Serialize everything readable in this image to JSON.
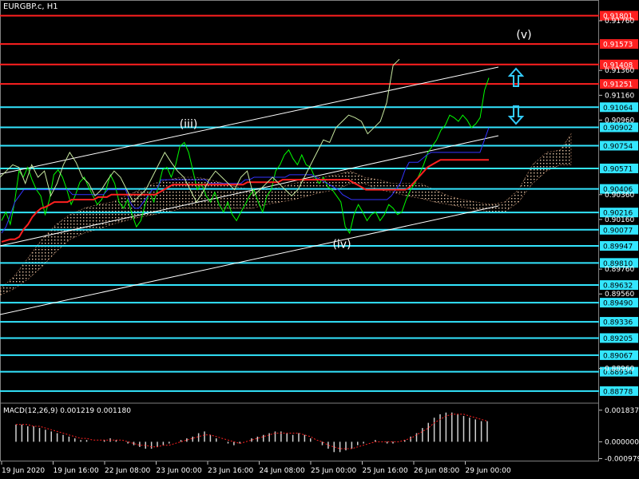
{
  "header": {
    "symbol": "EURGBP.c, H1"
  },
  "macd": {
    "label": "MACD(12,26,9) 0.001219 0.001180"
  },
  "chart_data": {
    "type": "line",
    "ylim": [
      0.887,
      0.9185
    ],
    "y_ticks": [
      "0.91760",
      "0.91360",
      "0.91160",
      "0.90960",
      "0.90360",
      "0.90160",
      "0.89760",
      "0.89560",
      "0.88960"
    ],
    "red_levels": [
      {
        "value": 0.91801,
        "label": "0.91801"
      },
      {
        "value": 0.91573,
        "label": "0.91573"
      },
      {
        "value": 0.91408,
        "label": "0.91408"
      },
      {
        "value": 0.91251,
        "label": "0.91251"
      }
    ],
    "cyan_levels": [
      {
        "value": 0.91064,
        "label": "0.91064"
      },
      {
        "value": 0.90902,
        "label": "0.90902"
      },
      {
        "value": 0.90754,
        "label": "0.90754"
      },
      {
        "value": 0.90571,
        "label": "0.90571"
      },
      {
        "value": 0.90406,
        "label": "0.90406"
      },
      {
        "value": 0.90216,
        "label": "0.90216"
      },
      {
        "value": 0.90077,
        "label": "0.90077"
      },
      {
        "value": 0.89947,
        "label": "0.89947"
      },
      {
        "value": 0.8981,
        "label": "0.89810"
      },
      {
        "value": 0.89632,
        "label": "0.89632"
      },
      {
        "value": 0.8949,
        "label": "0.89490"
      },
      {
        "value": 0.89336,
        "label": "0.89336"
      },
      {
        "value": 0.89205,
        "label": "0.89205"
      },
      {
        "value": 0.89067,
        "label": "0.89067"
      },
      {
        "value": 0.88934,
        "label": "0.88934"
      },
      {
        "value": 0.88778,
        "label": "0.88778"
      }
    ],
    "x_labels": [
      "19 Jun 2020",
      "19 Jun 16:00",
      "22 Jun 08:00",
      "23 Jun 00:00",
      "23 Jun 16:00",
      "24 Jun 08:00",
      "25 Jun 00:00",
      "25 Jun 16:00",
      "26 Jun 08:00",
      "29 Jun 00:00"
    ],
    "wave_labels": [
      {
        "text": "(iii)",
        "x_index": 236,
        "value": 0.909
      },
      {
        "text": "(iv)",
        "x_index": 428,
        "value": 0.8993
      },
      {
        "text": "(v)",
        "x_index": 656,
        "value": 0.9162
      }
    ],
    "series": [
      {
        "name": "price",
        "color": "#00ff00",
        "values": [
          0.9015,
          0.9022,
          0.9012,
          0.903,
          0.9055,
          0.905,
          0.9058,
          0.9048,
          0.904,
          0.9035,
          0.902,
          0.9032,
          0.9052,
          0.9056,
          0.905,
          0.904,
          0.9028,
          0.9036,
          0.9046,
          0.905,
          0.9042,
          0.9035,
          0.9028,
          0.9032,
          0.904,
          0.9052,
          0.9045,
          0.903,
          0.9025,
          0.9032,
          0.902,
          0.901,
          0.9015,
          0.9028,
          0.9038,
          0.903,
          0.9042,
          0.9056,
          0.9058,
          0.905,
          0.906,
          0.9075,
          0.9078,
          0.907,
          0.9055,
          0.904,
          0.9045,
          0.9035,
          0.903,
          0.9038,
          0.9028,
          0.9022,
          0.903,
          0.902,
          0.9015,
          0.9022,
          0.9028,
          0.9035,
          0.904,
          0.903,
          0.9022,
          0.9035,
          0.904,
          0.9055,
          0.906,
          0.9068,
          0.9072,
          0.9065,
          0.906,
          0.9068,
          0.906,
          0.9058,
          0.905,
          0.9045,
          0.905,
          0.9042,
          0.904,
          0.9035,
          0.903,
          0.901,
          0.9005,
          0.902,
          0.9028,
          0.9022,
          0.9015,
          0.902,
          0.9022,
          0.9015,
          0.902,
          0.9028,
          0.9025,
          0.902,
          0.9022,
          0.9032,
          0.904,
          0.9045,
          0.9052,
          0.906,
          0.907,
          0.9075,
          0.908,
          0.9088,
          0.9092,
          0.91,
          0.9098,
          0.9095,
          0.91,
          0.9096,
          0.909,
          0.9093,
          0.9098,
          0.912,
          0.913
        ]
      },
      {
        "name": "tenkan",
        "color": "#3333ff",
        "values": [
          0.9005,
          0.901,
          0.902,
          0.903,
          0.9035,
          0.904,
          0.904,
          0.904,
          0.904,
          0.904,
          0.904,
          0.904,
          0.904,
          0.904,
          0.904,
          0.904,
          0.9036,
          0.9036,
          0.9036,
          0.9036,
          0.9036,
          0.9036,
          0.9036,
          0.9036,
          0.904,
          0.904,
          0.904,
          0.904,
          0.904,
          0.903,
          0.9025,
          0.9025,
          0.903,
          0.9035,
          0.904,
          0.904,
          0.9048,
          0.9048,
          0.9048,
          0.9048,
          0.9048,
          0.9048,
          0.9048,
          0.9048,
          0.9048,
          0.9048,
          0.9048,
          0.9045,
          0.9045,
          0.9045,
          0.9045,
          0.9045,
          0.9045,
          0.9045,
          0.9045,
          0.9048,
          0.9048,
          0.905,
          0.905,
          0.905,
          0.905,
          0.905,
          0.905,
          0.905,
          0.905,
          0.9052,
          0.9052,
          0.9052,
          0.9052,
          0.9052,
          0.9052,
          0.905,
          0.9048,
          0.9046,
          0.9044,
          0.9042,
          0.904,
          0.9036,
          0.9034,
          0.9032,
          0.9032,
          0.9032,
          0.9032,
          0.9032,
          0.9032,
          0.9032,
          0.9032,
          0.9032,
          0.9035,
          0.904,
          0.9045,
          0.9055,
          0.9062,
          0.9062,
          0.9062,
          0.9065,
          0.9068,
          0.907,
          0.907,
          0.907,
          0.907,
          0.907,
          0.907,
          0.907,
          0.907,
          0.907,
          0.907,
          0.907,
          0.907,
          0.908,
          0.909
        ]
      },
      {
        "name": "kijun",
        "color": "#ff2020",
        "values": [
          0.8998,
          0.8999,
          0.9,
          0.9,
          0.9002,
          0.9008,
          0.9012,
          0.9018,
          0.9022,
          0.9025,
          0.9026,
          0.9028,
          0.903,
          0.903,
          0.903,
          0.903,
          0.9032,
          0.9032,
          0.9032,
          0.9032,
          0.9032,
          0.9032,
          0.9034,
          0.9034,
          0.9034,
          0.9036,
          0.9036,
          0.9036,
          0.9036,
          0.9036,
          0.9036,
          0.9036,
          0.9036,
          0.9036,
          0.9036,
          0.9036,
          0.9038,
          0.904,
          0.9042,
          0.9044,
          0.9044,
          0.9044,
          0.9044,
          0.9044,
          0.9044,
          0.9044,
          0.9044,
          0.9044,
          0.9044,
          0.9044,
          0.9044,
          0.9044,
          0.9044,
          0.9044,
          0.9044,
          0.9044,
          0.9046,
          0.9046,
          0.9046,
          0.9046,
          0.9046,
          0.9046,
          0.9046,
          0.9046,
          0.9048,
          0.9048,
          0.9048,
          0.9048,
          0.9048,
          0.9048,
          0.9048,
          0.9048,
          0.9048,
          0.9048,
          0.9048,
          0.9048,
          0.9048,
          0.9048,
          0.9048,
          0.9048,
          0.9046,
          0.9044,
          0.9042,
          0.904,
          0.904,
          0.904,
          0.904,
          0.904,
          0.904,
          0.904,
          0.904,
          0.904,
          0.904,
          0.9042,
          0.9046,
          0.905,
          0.9054,
          0.9058,
          0.906,
          0.9062,
          0.9064,
          0.9064,
          0.9064,
          0.9064,
          0.9064,
          0.9064,
          0.9064,
          0.9064,
          0.9064,
          0.9064,
          0.9064,
          0.9064
        ]
      },
      {
        "name": "chikou",
        "color": "#c8e8a0",
        "values": [
          0.905,
          0.9055,
          0.906,
          0.9058,
          0.9045,
          0.906,
          0.905,
          0.9055,
          0.9035,
          0.9045,
          0.906,
          0.907,
          0.9062,
          0.905,
          0.9045,
          0.9035,
          0.904,
          0.9048,
          0.9055,
          0.905,
          0.904,
          0.903,
          0.9035,
          0.904,
          0.905,
          0.906,
          0.907,
          0.9062,
          0.9055,
          0.905,
          0.904,
          0.903,
          0.9038,
          0.9048,
          0.9055,
          0.905,
          0.9045,
          0.904,
          0.905,
          0.9055,
          0.9035,
          0.904,
          0.9045,
          0.905,
          0.9045,
          0.904,
          0.9035,
          0.904,
          0.905,
          0.906,
          0.907,
          0.908,
          0.9078,
          0.909,
          0.9095,
          0.91,
          0.9098,
          0.9095,
          0.9085,
          0.909,
          0.9095,
          0.911,
          0.914,
          0.9145
        ]
      }
    ],
    "cloud": [
      {
        "x": 0.905,
        "a": 0.896,
        "b": 0.8955
      },
      {
        "x": 0.925,
        "a": 0.897,
        "b": 0.896
      },
      {
        "x": 0.945,
        "a": 0.8985,
        "b": 0.8968
      },
      {
        "x": 0.965,
        "a": 0.9,
        "b": 0.8978
      },
      {
        "x": 0.985,
        "a": 0.9012,
        "b": 0.899
      },
      {
        "x": 1.005,
        "a": 0.902,
        "b": 0.9
      },
      {
        "x": 1.025,
        "a": 0.9025,
        "b": 0.9005
      },
      {
        "x": 1.045,
        "a": 0.9028,
        "b": 0.9008
      },
      {
        "x": 1.065,
        "a": 0.903,
        "b": 0.9012
      },
      {
        "x": 1.085,
        "a": 0.9035,
        "b": 0.9015
      },
      {
        "x": 1.105,
        "a": 0.904,
        "b": 0.9018
      },
      {
        "x": 1.125,
        "a": 0.9045,
        "b": 0.902
      },
      {
        "x": 1.145,
        "a": 0.9048,
        "b": 0.9022
      },
      {
        "x": 1.165,
        "a": 0.905,
        "b": 0.9025
      },
      {
        "x": 1.185,
        "a": 0.905,
        "b": 0.9025
      },
      {
        "x": 1.205,
        "a": 0.9048,
        "b": 0.9025
      },
      {
        "x": 1.225,
        "a": 0.9045,
        "b": 0.9025
      },
      {
        "x": 1.245,
        "a": 0.9042,
        "b": 0.9025
      },
      {
        "x": 1.265,
        "a": 0.904,
        "b": 0.9025
      },
      {
        "x": 1.285,
        "a": 0.904,
        "b": 0.9028
      },
      {
        "x": 1.305,
        "a": 0.9042,
        "b": 0.903
      },
      {
        "x": 1.325,
        "a": 0.9045,
        "b": 0.9032
      },
      {
        "x": 1.345,
        "a": 0.9048,
        "b": 0.9035
      },
      {
        "x": 1.365,
        "a": 0.905,
        "b": 0.9038
      },
      {
        "x": 1.385,
        "a": 0.9052,
        "b": 0.904
      },
      {
        "x": 1.405,
        "a": 0.9055,
        "b": 0.9045
      },
      {
        "x": 1.425,
        "a": 0.905,
        "b": 0.9045
      },
      {
        "x": 1.445,
        "a": 0.9048,
        "b": 0.904
      },
      {
        "x": 1.465,
        "a": 0.9045,
        "b": 0.9038
      },
      {
        "x": 1.485,
        "a": 0.9045,
        "b": 0.9035
      },
      {
        "x": 1.505,
        "a": 0.9045,
        "b": 0.9033
      },
      {
        "x": 1.525,
        "a": 0.904,
        "b": 0.903
      },
      {
        "x": 1.545,
        "a": 0.9035,
        "b": 0.9028
      },
      {
        "x": 1.565,
        "a": 0.9032,
        "b": 0.9026
      },
      {
        "x": 1.585,
        "a": 0.903,
        "b": 0.9024
      },
      {
        "x": 1.605,
        "a": 0.9028,
        "b": 0.9022
      },
      {
        "x": 1.625,
        "a": 0.903,
        "b": 0.9022
      },
      {
        "x": 1.645,
        "a": 0.904,
        "b": 0.903
      },
      {
        "x": 1.665,
        "a": 0.906,
        "b": 0.9045
      },
      {
        "x": 1.685,
        "a": 0.907,
        "b": 0.9055
      },
      {
        "x": 1.705,
        "a": 0.9072,
        "b": 0.906
      },
      {
        "x": 1.72,
        "a": 0.9085,
        "b": 0.906
      }
    ],
    "macd_panel": {
      "ylim": [
        -0.00105,
        0.00192
      ],
      "y_ticks": [
        "0.001837",
        "0.000000",
        "-0.000979"
      ],
      "histogram": [
        0.001,
        0.001,
        0.0009,
        0.0009,
        0.0008,
        0.0007,
        0.0006,
        0.0005,
        0.0004,
        0.0003,
        0.0002,
        0.0001,
        0.0001,
        0.0,
        0.0,
        0.0001,
        0.0002,
        0.0001,
        0.0,
        -0.0001,
        -0.0002,
        -0.0003,
        -0.0004,
        -0.0004,
        -0.0003,
        -0.0002,
        -0.0001,
        0.0,
        0.0001,
        0.0002,
        0.0003,
        0.0005,
        0.0006,
        0.0004,
        0.0002,
        0.0,
        -0.0001,
        -0.0002,
        -0.0001,
        0.0,
        0.0002,
        0.0003,
        0.0004,
        0.0005,
        0.0006,
        0.0006,
        0.0005,
        0.0004,
        0.0005,
        0.0004,
        0.0002,
        0.0,
        -0.0002,
        -0.0004,
        -0.0006,
        -0.0006,
        -0.0005,
        -0.0004,
        -0.0002,
        -0.0001,
        0.0,
        0.0001,
        0.0,
        -0.0001,
        -0.0001,
        0.0,
        0.0001,
        0.0003,
        0.0005,
        0.0008,
        0.0011,
        0.0014,
        0.0016,
        0.0017,
        0.0017,
        0.0016,
        0.0015,
        0.0014,
        0.0013,
        0.0012,
        0.0012
      ],
      "signal": [
        0.001,
        0.001,
        0.001,
        0.0009,
        0.0009,
        0.0008,
        0.0007,
        0.0006,
        0.0005,
        0.0004,
        0.0003,
        0.0002,
        0.0002,
        0.0001,
        0.0001,
        0.0001,
        0.0001,
        0.0001,
        0.0001,
        0.0,
        -0.0001,
        -0.0002,
        -0.0002,
        -0.0003,
        -0.0003,
        -0.0002,
        -0.0002,
        -0.0001,
        0.0,
        0.0001,
        0.0002,
        0.0003,
        0.0004,
        0.0004,
        0.0003,
        0.0002,
        0.0001,
        0.0,
        -0.0001,
        0.0,
        0.0001,
        0.0002,
        0.0003,
        0.0004,
        0.0005,
        0.0005,
        0.0005,
        0.0005,
        0.0005,
        0.0004,
        0.0003,
        0.0001,
        0.0,
        -0.0002,
        -0.0003,
        -0.0004,
        -0.0004,
        -0.0004,
        -0.0003,
        -0.0002,
        -0.0001,
        0.0,
        0.0,
        0.0,
        0.0,
        0.0,
        0.0001,
        0.0002,
        0.0004,
        0.0006,
        0.0008,
        0.0011,
        0.0013,
        0.0015,
        0.0016,
        0.0016,
        0.0016,
        0.0015,
        0.0014,
        0.0013,
        0.0012
      ]
    }
  }
}
